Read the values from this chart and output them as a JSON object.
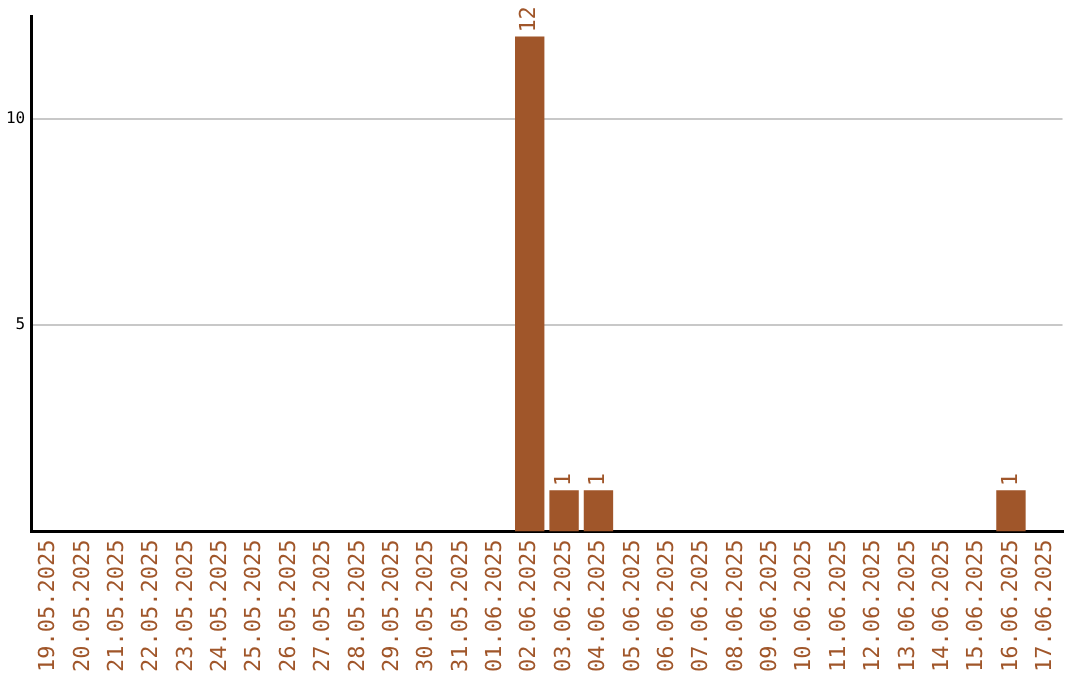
{
  "chart_data": {
    "type": "bar",
    "categories": [
      "19.05.2025",
      "20.05.2025",
      "21.05.2025",
      "22.05.2025",
      "23.05.2025",
      "24.05.2025",
      "25.05.2025",
      "26.05.2025",
      "27.05.2025",
      "28.05.2025",
      "29.05.2025",
      "30.05.2025",
      "31.05.2025",
      "01.06.2025",
      "02.06.2025",
      "03.06.2025",
      "04.06.2025",
      "05.06.2025",
      "06.06.2025",
      "07.06.2025",
      "08.06.2025",
      "09.06.2025",
      "10.06.2025",
      "11.06.2025",
      "12.06.2025",
      "13.06.2025",
      "14.06.2025",
      "15.06.2025",
      "16.06.2025",
      "17.06.2025"
    ],
    "values": [
      0,
      0,
      0,
      0,
      0,
      0,
      0,
      0,
      0,
      0,
      0,
      0,
      0,
      0,
      12,
      1,
      1,
      0,
      0,
      0,
      0,
      0,
      0,
      0,
      0,
      0,
      0,
      0,
      1,
      0
    ],
    "value_labels": [
      null,
      null,
      null,
      null,
      null,
      null,
      null,
      null,
      null,
      null,
      null,
      null,
      null,
      null,
      "12",
      "1",
      "1",
      null,
      null,
      null,
      null,
      null,
      null,
      null,
      null,
      null,
      null,
      null,
      "1",
      null
    ],
    "color": "#a0562a",
    "ylim": [
      0,
      12.5
    ],
    "yticks": [
      5,
      10
    ],
    "grid": "y",
    "legend": false
  }
}
